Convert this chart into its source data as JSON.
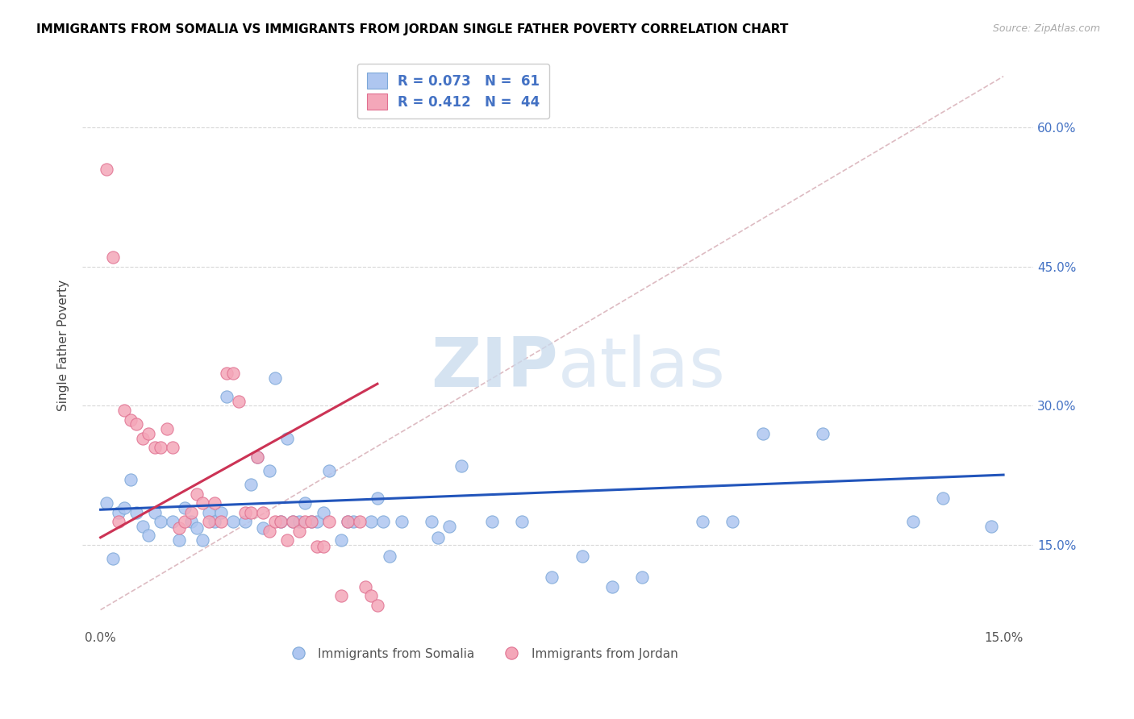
{
  "title": "IMMIGRANTS FROM SOMALIA VS IMMIGRANTS FROM JORDAN SINGLE FATHER POVERTY CORRELATION CHART",
  "source": "Source: ZipAtlas.com",
  "ylabel": "Single Father Poverty",
  "ytick_vals": [
    0.15,
    0.3,
    0.45,
    0.6
  ],
  "ytick_labels": [
    "15.0%",
    "30.0%",
    "45.0%",
    "60.0%"
  ],
  "xtick_vals": [
    0.0,
    0.025,
    0.05,
    0.075,
    0.1,
    0.125,
    0.15
  ],
  "xtick_labels": [
    "0.0%",
    "",
    "",
    "",
    "",
    "",
    "15.0%"
  ],
  "xrange": [
    -0.003,
    0.155
  ],
  "yrange": [
    0.06,
    0.67
  ],
  "legend1_label": "R = 0.073   N =  61",
  "legend2_label": "R = 0.412   N =  44",
  "legend_bottom1": "Immigrants from Somalia",
  "legend_bottom2": "Immigrants from Jordan",
  "somalia_color": "#aec6f0",
  "jordan_color": "#f4a7b9",
  "somalia_edge": "#7da8d8",
  "jordan_edge": "#e07090",
  "line_somalia_color": "#2255bb",
  "line_jordan_color": "#cc3355",
  "watermark_zip": "ZIP",
  "watermark_atlas": "atlas",
  "somalia_points": [
    [
      0.001,
      0.195
    ],
    [
      0.002,
      0.135
    ],
    [
      0.003,
      0.185
    ],
    [
      0.004,
      0.19
    ],
    [
      0.005,
      0.22
    ],
    [
      0.006,
      0.185
    ],
    [
      0.007,
      0.17
    ],
    [
      0.008,
      0.16
    ],
    [
      0.009,
      0.185
    ],
    [
      0.01,
      0.175
    ],
    [
      0.012,
      0.175
    ],
    [
      0.013,
      0.155
    ],
    [
      0.014,
      0.19
    ],
    [
      0.015,
      0.175
    ],
    [
      0.016,
      0.168
    ],
    [
      0.017,
      0.155
    ],
    [
      0.018,
      0.185
    ],
    [
      0.019,
      0.175
    ],
    [
      0.02,
      0.185
    ],
    [
      0.021,
      0.31
    ],
    [
      0.022,
      0.175
    ],
    [
      0.024,
      0.175
    ],
    [
      0.025,
      0.215
    ],
    [
      0.026,
      0.245
    ],
    [
      0.027,
      0.168
    ],
    [
      0.028,
      0.23
    ],
    [
      0.029,
      0.33
    ],
    [
      0.03,
      0.175
    ],
    [
      0.031,
      0.265
    ],
    [
      0.032,
      0.175
    ],
    [
      0.033,
      0.175
    ],
    [
      0.034,
      0.195
    ],
    [
      0.035,
      0.175
    ],
    [
      0.036,
      0.175
    ],
    [
      0.037,
      0.185
    ],
    [
      0.038,
      0.23
    ],
    [
      0.04,
      0.155
    ],
    [
      0.041,
      0.175
    ],
    [
      0.042,
      0.175
    ],
    [
      0.045,
      0.175
    ],
    [
      0.046,
      0.2
    ],
    [
      0.047,
      0.175
    ],
    [
      0.048,
      0.138
    ],
    [
      0.05,
      0.175
    ],
    [
      0.055,
      0.175
    ],
    [
      0.056,
      0.158
    ],
    [
      0.058,
      0.17
    ],
    [
      0.06,
      0.235
    ],
    [
      0.065,
      0.175
    ],
    [
      0.07,
      0.175
    ],
    [
      0.075,
      0.115
    ],
    [
      0.08,
      0.138
    ],
    [
      0.085,
      0.105
    ],
    [
      0.09,
      0.115
    ],
    [
      0.1,
      0.175
    ],
    [
      0.105,
      0.175
    ],
    [
      0.11,
      0.27
    ],
    [
      0.12,
      0.27
    ],
    [
      0.135,
      0.175
    ],
    [
      0.14,
      0.2
    ],
    [
      0.148,
      0.17
    ]
  ],
  "jordan_points": [
    [
      0.001,
      0.555
    ],
    [
      0.002,
      0.46
    ],
    [
      0.003,
      0.175
    ],
    [
      0.004,
      0.295
    ],
    [
      0.005,
      0.285
    ],
    [
      0.006,
      0.28
    ],
    [
      0.007,
      0.265
    ],
    [
      0.008,
      0.27
    ],
    [
      0.009,
      0.255
    ],
    [
      0.01,
      0.255
    ],
    [
      0.011,
      0.275
    ],
    [
      0.012,
      0.255
    ],
    [
      0.013,
      0.168
    ],
    [
      0.014,
      0.175
    ],
    [
      0.015,
      0.185
    ],
    [
      0.016,
      0.205
    ],
    [
      0.017,
      0.195
    ],
    [
      0.018,
      0.175
    ],
    [
      0.019,
      0.195
    ],
    [
      0.02,
      0.175
    ],
    [
      0.021,
      0.335
    ],
    [
      0.022,
      0.335
    ],
    [
      0.023,
      0.305
    ],
    [
      0.024,
      0.185
    ],
    [
      0.025,
      0.185
    ],
    [
      0.026,
      0.245
    ],
    [
      0.027,
      0.185
    ],
    [
      0.028,
      0.165
    ],
    [
      0.029,
      0.175
    ],
    [
      0.03,
      0.175
    ],
    [
      0.031,
      0.155
    ],
    [
      0.032,
      0.175
    ],
    [
      0.033,
      0.165
    ],
    [
      0.034,
      0.175
    ],
    [
      0.035,
      0.175
    ],
    [
      0.036,
      0.148
    ],
    [
      0.037,
      0.148
    ],
    [
      0.038,
      0.175
    ],
    [
      0.04,
      0.095
    ],
    [
      0.041,
      0.175
    ],
    [
      0.043,
      0.175
    ],
    [
      0.044,
      0.105
    ],
    [
      0.045,
      0.095
    ],
    [
      0.046,
      0.085
    ]
  ],
  "somalia_intercept": 0.188,
  "somalia_slope": 0.25,
  "jordan_intercept": 0.158,
  "jordan_slope": 3.6,
  "jordan_line_xmax": 0.046,
  "diag_color": "#d8b0b8",
  "diag_dash": "--",
  "grid_color": "#d8d8d8",
  "title_fontsize": 11,
  "tick_fontsize": 11,
  "right_tick_color": "#4472C4",
  "marker_size": 120
}
